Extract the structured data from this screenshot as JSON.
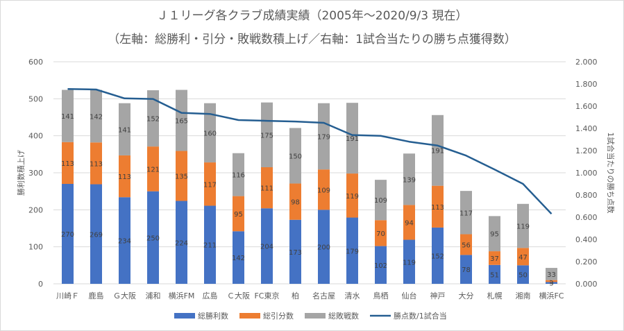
{
  "titles": {
    "line1": "Ｊ１リーグ各クラブ成績実績（2005年～2020/9/3 現在）",
    "line2": "（左軸：総勝利・引分・敗戦数積上げ／右軸：1試合当たりの勝ち点獲得数）"
  },
  "chart_data": {
    "type": "bar",
    "stacked": true,
    "categories": [
      "川崎Ｆ",
      "鹿島",
      "Ｇ大阪",
      "浦和",
      "横浜FM",
      "広島",
      "Ｃ大阪",
      "FC東京",
      "柏",
      "名古屋",
      "清水",
      "鳥栖",
      "仙台",
      "神戸",
      "大分",
      "札幌",
      "湘南",
      "横浜FC"
    ],
    "series": [
      {
        "name": "総勝利数",
        "color": "#4472c4",
        "values": [
          270,
          269,
          234,
          250,
          224,
          211,
          142,
          204,
          173,
          200,
          179,
          102,
          119,
          152,
          78,
          51,
          50,
          5
        ]
      },
      {
        "name": "総引分数",
        "color": "#ed7d31",
        "values": [
          113,
          113,
          113,
          121,
          135,
          117,
          95,
          111,
          98,
          109,
          119,
          70,
          94,
          113,
          56,
          37,
          47,
          5
        ]
      },
      {
        "name": "総敗戦数",
        "color": "#a5a5a5",
        "values": [
          141,
          142,
          141,
          152,
          165,
          160,
          116,
          175,
          150,
          179,
          191,
          109,
          139,
          191,
          117,
          95,
          119,
          33
        ]
      }
    ],
    "line_series": {
      "name": "勝点数/1試合当",
      "color": "#255e91",
      "axis": "right",
      "values": [
        1.755,
        1.75,
        1.67,
        1.665,
        1.54,
        1.53,
        1.475,
        1.468,
        1.462,
        1.45,
        1.34,
        1.333,
        1.28,
        1.245,
        1.155,
        1.03,
        0.9,
        0.63
      ]
    },
    "ylabel": "勝利数積上げ",
    "y2label": "1試合当たりの勝ち点数",
    "ylim": [
      0,
      600
    ],
    "y2lim": [
      0,
      2.0
    ],
    "yticks": [
      "0",
      "100",
      "200",
      "300",
      "400",
      "500",
      "600"
    ],
    "y2ticks": [
      "0.000",
      "0.200",
      "0.400",
      "0.600",
      "0.800",
      "1.000",
      "1.200",
      "1.400",
      "1.600",
      "1.800",
      "2.000"
    ],
    "grid": true,
    "legend_position": "bottom"
  }
}
